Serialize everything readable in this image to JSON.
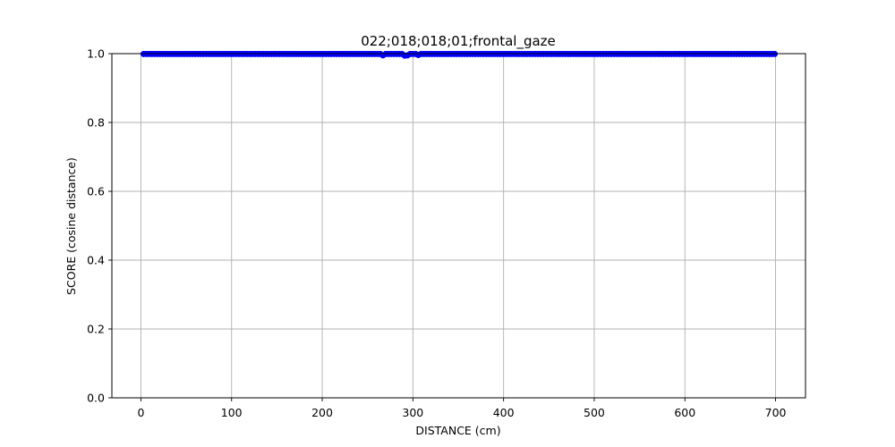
{
  "chart_data": {
    "type": "line",
    "title": "022;018;018;01;frontal_gaze",
    "xlabel": "DISTANCE (cm)",
    "ylabel": "SCORE (cosine distance)",
    "xlim": [
      -32,
      733
    ],
    "ylim": [
      0.0,
      1.0
    ],
    "xticks": [
      0,
      100,
      200,
      300,
      400,
      500,
      600,
      700
    ],
    "yticks": [
      0.0,
      0.2,
      0.4,
      0.6,
      0.8,
      1.0
    ],
    "xtick_labels": [
      "0",
      "100",
      "200",
      "300",
      "400",
      "500",
      "600",
      "700"
    ],
    "ytick_labels": [
      "0.0",
      "0.2",
      "0.4",
      "0.6",
      "0.8",
      "1.0"
    ],
    "grid": true,
    "series": [
      {
        "color": "#0000ff",
        "marker": "circle",
        "x_start": 3,
        "x_end": 701,
        "x_step": 3,
        "default_y": 0.999,
        "dips": [
          {
            "x": 267,
            "y": 0.995
          },
          {
            "x": 291,
            "y": 0.994
          },
          {
            "x": 294,
            "y": 0.995
          },
          {
            "x": 306,
            "y": 0.996
          }
        ]
      }
    ]
  }
}
